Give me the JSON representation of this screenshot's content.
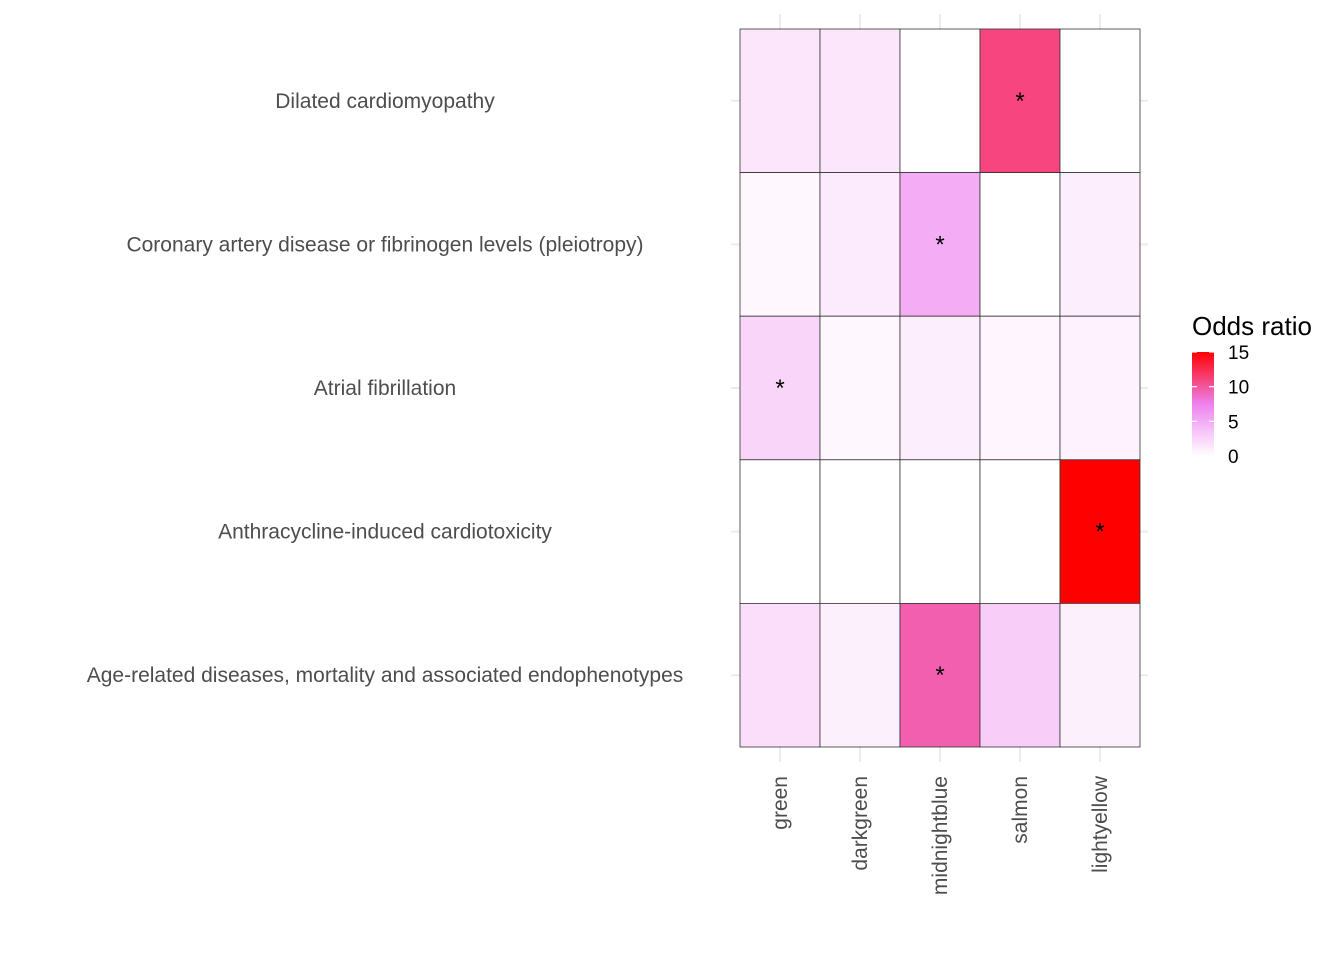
{
  "chart_data": {
    "type": "heatmap",
    "title": "",
    "xlabel": "",
    "ylabel": "",
    "rows": [
      "Dilated cardiomyopathy",
      "Coronary artery disease or fibrinogen levels (pleiotropy)",
      "Atrial fibrillation",
      "Anthracycline-induced cardiotoxicity",
      "Age-related diseases, mortality and associated endophenotypes"
    ],
    "columns": [
      "green",
      "darkgreen",
      "midnightblue",
      "salmon",
      "lightyellow"
    ],
    "values": [
      [
        1.5,
        1.5,
        0,
        11,
        0
      ],
      [
        0.5,
        1.2,
        5,
        0,
        1.0
      ],
      [
        2.5,
        0.4,
        1.0,
        0.6,
        0.8
      ],
      [
        0,
        0,
        0,
        0,
        15
      ],
      [
        2.0,
        0.9,
        9.5,
        3.0,
        0.9
      ]
    ],
    "significance_marker": "*",
    "significant": [
      [
        false,
        false,
        false,
        true,
        false
      ],
      [
        false,
        false,
        true,
        false,
        false
      ],
      [
        true,
        false,
        false,
        false,
        false
      ],
      [
        false,
        false,
        false,
        false,
        true
      ],
      [
        false,
        false,
        true,
        false,
        false
      ]
    ],
    "legend": {
      "title": "Odds ratio",
      "ticks": [
        "0",
        "5",
        "10",
        "15"
      ],
      "tick_values": [
        0,
        5,
        10,
        15
      ],
      "range": [
        0,
        15
      ],
      "placement": "right"
    },
    "color_scale": [
      "#ffffff",
      "#ee82ee",
      "#ff0000"
    ],
    "grid": true
  }
}
